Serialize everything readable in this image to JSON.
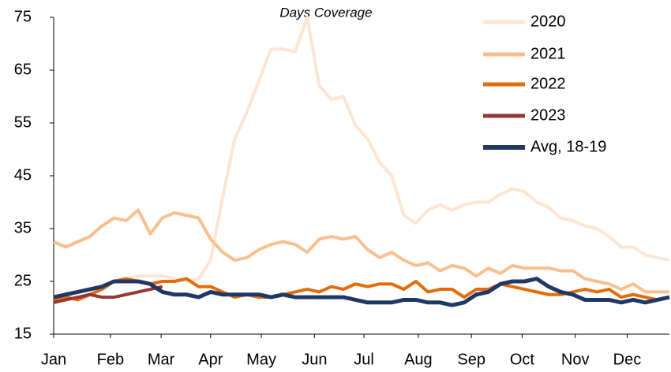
{
  "chart_data": {
    "type": "line",
    "title": "Days Coverage",
    "x": [
      0,
      1,
      2,
      3,
      4,
      5,
      6,
      7,
      8,
      9,
      10,
      11,
      12,
      13,
      14,
      15,
      16,
      17,
      18,
      19,
      20,
      21,
      22,
      23,
      24,
      25,
      26,
      27,
      28,
      29,
      30,
      31,
      32,
      33,
      34,
      35,
      36,
      37,
      38,
      39,
      40,
      41,
      42,
      43,
      44,
      45,
      46,
      47,
      48,
      49,
      50,
      51
    ],
    "xlim": [
      0,
      51
    ],
    "xticks": [
      {
        "value": 0,
        "label": "Jan"
      },
      {
        "value": 4.7,
        "label": "Feb"
      },
      {
        "value": 8.9,
        "label": "Mar"
      },
      {
        "value": 13,
        "label": "Apr"
      },
      {
        "value": 17.2,
        "label": "May"
      },
      {
        "value": 21.6,
        "label": "Jun"
      },
      {
        "value": 25.7,
        "label": "Jul"
      },
      {
        "value": 30.2,
        "label": "Aug"
      },
      {
        "value": 34.6,
        "label": "Sep"
      },
      {
        "value": 38.8,
        "label": "Oct"
      },
      {
        "value": 43.2,
        "label": "Nov"
      },
      {
        "value": 47.5,
        "label": "Dec"
      }
    ],
    "ylim": [
      15,
      75
    ],
    "yticks": [
      15,
      25,
      35,
      45,
      55,
      65,
      75
    ],
    "grid": false,
    "legend": "top-right",
    "series": [
      {
        "name": "2020",
        "color": "#fde4d3",
        "values": [
          22,
          22.5,
          23,
          23.5,
          24,
          25,
          25.5,
          26,
          26,
          26,
          25.5,
          25,
          25.5,
          29,
          41,
          52,
          57,
          63,
          69,
          69,
          68.5,
          75,
          62,
          59.5,
          60,
          54.5,
          52,
          47.5,
          45,
          37.5,
          36,
          38.5,
          39.5,
          38.5,
          39.5,
          40,
          40,
          41.5,
          42.5,
          42,
          40,
          39,
          37,
          36.5,
          35.5,
          35,
          33.5,
          31.5,
          31.5,
          30,
          29.5,
          29
        ]
      },
      {
        "name": "2021",
        "color": "#f8bf8e",
        "values": [
          32.5,
          31.5,
          32.5,
          33.5,
          35.5,
          37,
          36.5,
          38.5,
          34,
          37,
          38,
          37.5,
          37,
          33,
          30.5,
          29,
          29.5,
          31,
          32,
          32.5,
          32,
          30.5,
          33,
          33.5,
          33,
          33.5,
          31,
          29.5,
          30.5,
          29,
          28,
          28.5,
          27,
          28,
          27.5,
          26,
          27.5,
          26.5,
          28,
          27.5,
          27.5,
          27.5,
          27,
          27,
          25.5,
          25,
          24.5,
          23.5,
          24.5,
          23,
          23,
          23
        ]
      },
      {
        "name": "2022",
        "color": "#e36c0a",
        "values": [
          21.5,
          22,
          21.5,
          22.5,
          23.5,
          25,
          25.5,
          25,
          24.5,
          25,
          25,
          25.5,
          24,
          24,
          23,
          22,
          22.5,
          22,
          22,
          22.5,
          23,
          23.5,
          23,
          24,
          23.5,
          24.5,
          24,
          24.5,
          24.5,
          23.5,
          25,
          23,
          23.5,
          23.5,
          22,
          23.5,
          23.5,
          24.5,
          24,
          23.5,
          23,
          22.5,
          22.5,
          23,
          23.5,
          23,
          23.5,
          22,
          22.5,
          22,
          21.5,
          22
        ]
      },
      {
        "name": "2023",
        "color": "#953735",
        "values": [
          21,
          21.5,
          22,
          22.5,
          22,
          22,
          22.5,
          23,
          23.5,
          24,
          null,
          null,
          null,
          null,
          null,
          null,
          null,
          null,
          null,
          null,
          null,
          null,
          null,
          null,
          null,
          null,
          null,
          null,
          null,
          null,
          null,
          null,
          null,
          null,
          null,
          null,
          null,
          null,
          null,
          null,
          null,
          null,
          null,
          null,
          null,
          null,
          null,
          null,
          null,
          null,
          null,
          null
        ]
      },
      {
        "name": "Avg, 18-19",
        "color": "#1f3864",
        "values": [
          22,
          22.5,
          23,
          23.5,
          24,
          25,
          25,
          25,
          24.5,
          23,
          22.5,
          22.5,
          22,
          23,
          22.5,
          22.5,
          22.5,
          22.5,
          22,
          22.5,
          22,
          22,
          22,
          22,
          22,
          21.5,
          21,
          21,
          21,
          21.5,
          21.5,
          21,
          21,
          20.5,
          21,
          22.5,
          23,
          24.5,
          25,
          25,
          25.5,
          24,
          23,
          22.5,
          21.5,
          21.5,
          21.5,
          21,
          21.5,
          21,
          21.5,
          22
        ]
      }
    ]
  }
}
